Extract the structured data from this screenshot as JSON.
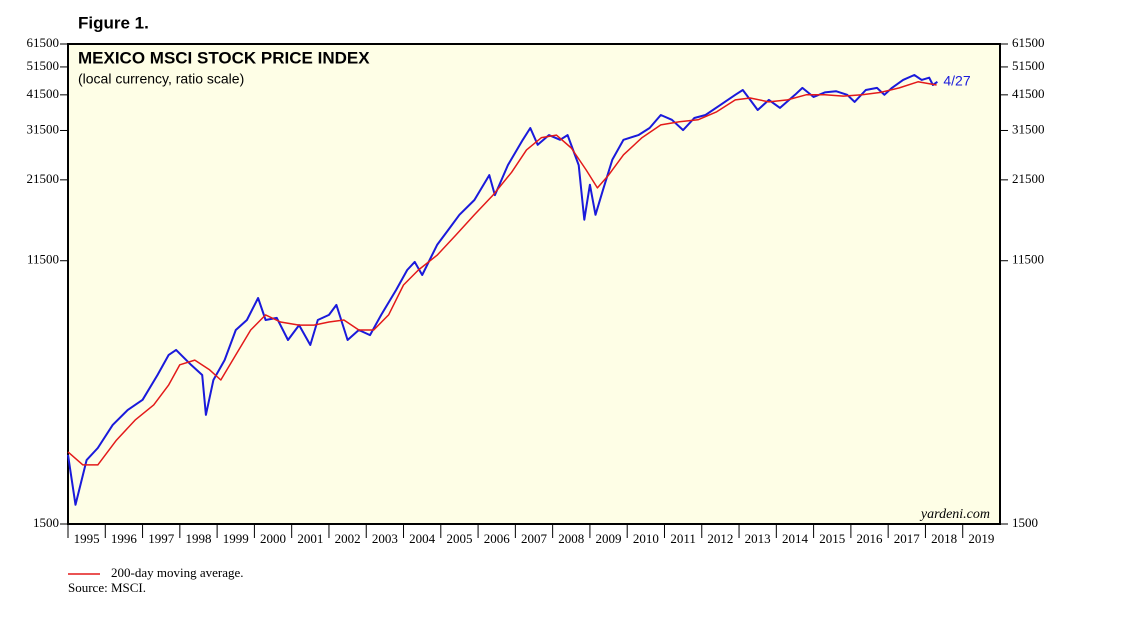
{
  "figure_label": "Figure 1.",
  "chart_data": {
    "type": "line",
    "title": "MEXICO MSCI STOCK PRICE INDEX",
    "subtitle": "(local currency, ratio scale)",
    "annotation": "4/27",
    "watermark": "yardeni.com",
    "log_scale": true,
    "xlim": [
      1995,
      2020
    ],
    "xticks": [
      1995,
      1996,
      1997,
      1998,
      1999,
      2000,
      2001,
      2002,
      2003,
      2004,
      2005,
      2006,
      2007,
      2008,
      2009,
      2010,
      2011,
      2012,
      2013,
      2014,
      2015,
      2016,
      2017,
      2018,
      2019
    ],
    "ylim": [
      1500,
      61500
    ],
    "yticks": [
      1500,
      11500,
      21500,
      31500,
      41500,
      51500,
      61500
    ],
    "series": [
      {
        "color": "#1a1adb",
        "x": [
          1995.0,
          1995.2,
          1995.5,
          1995.8,
          1996.2,
          1996.6,
          1997.0,
          1997.4,
          1997.7,
          1997.9,
          1998.3,
          1998.6,
          1998.7,
          1998.9,
          1999.2,
          1999.5,
          1999.8,
          2000.1,
          2000.3,
          2000.6,
          2000.9,
          2001.2,
          2001.5,
          2001.7,
          2002.0,
          2002.2,
          2002.5,
          2002.8,
          2003.1,
          2003.4,
          2003.8,
          2004.1,
          2004.3,
          2004.5,
          2004.9,
          2005.2,
          2005.5,
          2005.9,
          2006.3,
          2006.45,
          2006.8,
          2007.2,
          2007.4,
          2007.6,
          2007.9,
          2008.2,
          2008.4,
          2008.7,
          2008.85,
          2009.0,
          2009.15,
          2009.35,
          2009.6,
          2009.9,
          2010.3,
          2010.6,
          2010.9,
          2011.2,
          2011.5,
          2011.8,
          2012.1,
          2012.5,
          2012.9,
          2013.1,
          2013.3,
          2013.5,
          2013.8,
          2014.1,
          2014.5,
          2014.7,
          2015.0,
          2015.3,
          2015.6,
          2015.9,
          2016.1,
          2016.4,
          2016.7,
          2016.9,
          2017.1,
          2017.4,
          2017.7,
          2017.9,
          2018.1,
          2018.2,
          2018.32
        ],
        "values": [
          2560,
          1740,
          2460,
          2700,
          3230,
          3620,
          3920,
          4750,
          5550,
          5770,
          5140,
          4750,
          3490,
          4570,
          5330,
          6730,
          7270,
          8620,
          7270,
          7390,
          6230,
          6990,
          5990,
          7270,
          7560,
          8170,
          6230,
          6730,
          6470,
          7560,
          9170,
          10700,
          11400,
          10300,
          13000,
          14600,
          16400,
          18400,
          22300,
          19100,
          24100,
          29300,
          32100,
          28200,
          30400,
          29300,
          30400,
          24100,
          15800,
          20700,
          16400,
          19900,
          25100,
          29300,
          30400,
          32100,
          35500,
          34200,
          31600,
          34700,
          35500,
          38400,
          41500,
          43100,
          39900,
          36900,
          39900,
          37500,
          41500,
          43800,
          40800,
          42300,
          42700,
          41500,
          39300,
          43100,
          43800,
          41500,
          43800,
          46600,
          48400,
          46600,
          47400,
          44800,
          45900
        ]
      },
      {
        "name": "200-day moving average.",
        "color": "#e31a1a",
        "x": [
          1995.0,
          1995.4,
          1995.8,
          1996.3,
          1996.8,
          1997.3,
          1997.7,
          1998.0,
          1998.4,
          1998.8,
          1999.1,
          1999.5,
          1999.9,
          2000.3,
          2000.7,
          2001.2,
          2001.6,
          2002.0,
          2002.4,
          2002.8,
          2003.2,
          2003.6,
          2004.0,
          2004.4,
          2004.9,
          2005.4,
          2005.9,
          2006.4,
          2006.9,
          2007.3,
          2007.7,
          2008.1,
          2008.5,
          2008.9,
          2009.2,
          2009.5,
          2009.9,
          2010.4,
          2010.9,
          2011.4,
          2011.9,
          2012.4,
          2012.9,
          2013.3,
          2013.8,
          2014.3,
          2014.8,
          2015.3,
          2015.8,
          2016.3,
          2016.8,
          2017.3,
          2017.8,
          2018.3
        ],
        "values": [
          2620,
          2370,
          2370,
          2870,
          3350,
          3770,
          4400,
          5140,
          5330,
          4940,
          4570,
          5550,
          6730,
          7560,
          7160,
          6990,
          6990,
          7160,
          7270,
          6730,
          6730,
          7560,
          9530,
          10700,
          12000,
          14000,
          16400,
          19100,
          22800,
          27100,
          29800,
          30400,
          27500,
          23200,
          20200,
          22300,
          26100,
          29800,
          32900,
          33700,
          34200,
          36400,
          39900,
          40500,
          39300,
          39900,
          41500,
          41500,
          41100,
          41500,
          42300,
          43800,
          45900,
          44800
        ]
      }
    ],
    "source": "Source: MSCI."
  }
}
